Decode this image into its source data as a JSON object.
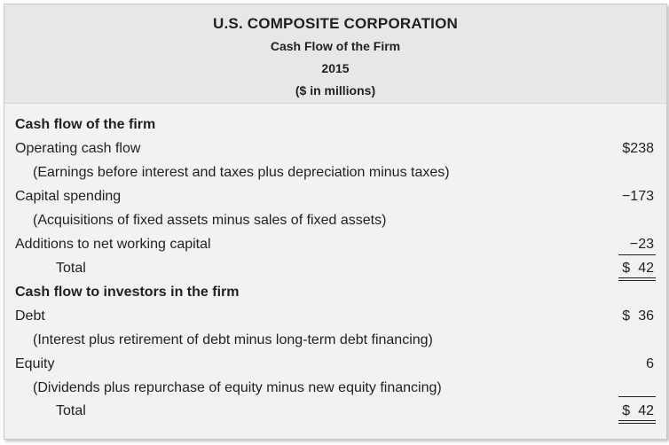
{
  "header": {
    "company": "U.S. COMPOSITE CORPORATION",
    "title": "Cash Flow of the Firm",
    "year": "2015",
    "units": "($ in millions)"
  },
  "sections": {
    "firm": {
      "heading": "Cash flow of the firm",
      "operating_label": "Operating cash flow",
      "operating_value": "$238",
      "operating_note": "(Earnings before interest and taxes plus depreciation minus taxes)",
      "capex_label": "Capital spending",
      "capex_value": "−173",
      "capex_note": "(Acquisitions of fixed assets minus sales of fixed assets)",
      "nwc_label": "Additions to net working capital",
      "nwc_value": "−23",
      "total_label": "Total",
      "total_currency": "$",
      "total_value": "42"
    },
    "investors": {
      "heading": "Cash flow to investors in the firm",
      "debt_label": "Debt",
      "debt_currency": "$",
      "debt_value": "36",
      "debt_note": "(Interest plus retirement of debt minus long-term debt financing)",
      "equity_label": "Equity",
      "equity_value": "6",
      "equity_note": "(Dividends plus repurchase of equity minus new equity financing)",
      "total_label": "Total",
      "total_currency": "$",
      "total_value": "42"
    }
  }
}
